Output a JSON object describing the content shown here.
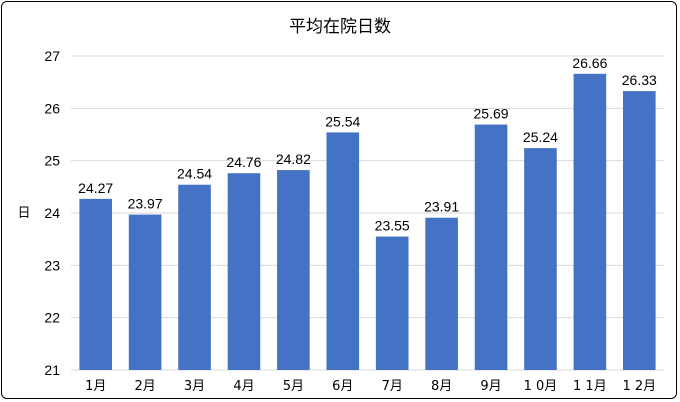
{
  "chart_data": {
    "type": "bar",
    "title": "平均在院日数",
    "xlabel": "",
    "ylabel": "日",
    "categories": [
      "1月",
      "2月",
      "3月",
      "4月",
      "5月",
      "6月",
      "7月",
      "8月",
      "9月",
      "1 0月",
      "1 1月",
      "1 2月"
    ],
    "values": [
      24.27,
      23.97,
      24.54,
      24.76,
      24.82,
      25.54,
      23.55,
      23.91,
      25.69,
      25.24,
      26.66,
      26.33
    ],
    "data_labels": [
      "24.27",
      "23.97",
      "24.54",
      "24.76",
      "24.82",
      "25.54",
      "23.55",
      "23.91",
      "25.69",
      "25.24",
      "26.66",
      "26.33"
    ],
    "ylim": [
      21,
      27
    ],
    "yticks": [
      "21",
      "22",
      "23",
      "24",
      "25",
      "26",
      "27"
    ],
    "grid": true,
    "legend": "none",
    "bar_color": "#4472c4",
    "grid_color": "#d9d9d9"
  }
}
